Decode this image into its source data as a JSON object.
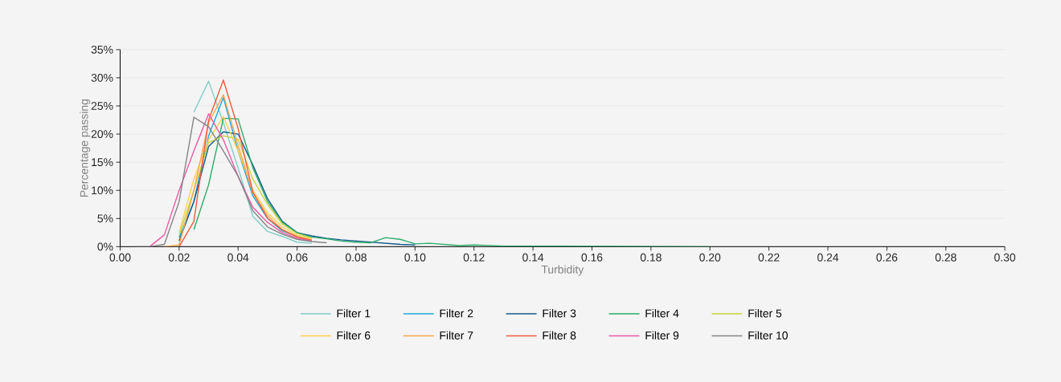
{
  "chart_data": {
    "type": "line",
    "xlabel": "Turbidity",
    "ylabel": "Percentage passing",
    "x": [
      0.005,
      0.01,
      0.015,
      0.02,
      0.025,
      0.03,
      0.035,
      0.04,
      0.045,
      0.05,
      0.055,
      0.06,
      0.065,
      0.07,
      0.075,
      0.08,
      0.085,
      0.09,
      0.095,
      0.1,
      0.105,
      0.11,
      0.115,
      0.12,
      0.125,
      0.13,
      0.15,
      0.2
    ],
    "series": [
      {
        "name": "Filter 1",
        "color": "#7fcdc4",
        "values": [
          null,
          null,
          null,
          null,
          23.9,
          29.4,
          22,
          14,
          5.4,
          2.7,
          1.8,
          0.8,
          0.6,
          null,
          null,
          null,
          null,
          null,
          null,
          null,
          null,
          null,
          null,
          null,
          null,
          null,
          null,
          null
        ]
      },
      {
        "name": "Filter 2",
        "color": "#1ea8dc",
        "values": [
          null,
          null,
          null,
          1.6,
          8,
          19.7,
          26.5,
          17,
          9,
          5,
          2.8,
          1.8,
          1.2,
          null,
          null,
          null,
          null,
          null,
          null,
          null,
          null,
          null,
          null,
          null,
          null,
          null,
          null,
          null
        ]
      },
      {
        "name": "Filter 3",
        "color": "#145a8c",
        "values": [
          null,
          null,
          null,
          1,
          8,
          17.8,
          20.4,
          20,
          14.5,
          8.5,
          4.5,
          2.5,
          1.9,
          1.5,
          1.2,
          1,
          0.8,
          0.6,
          0.4,
          0.3,
          null,
          null,
          null,
          null,
          null,
          null,
          null,
          null
        ]
      },
      {
        "name": "Filter 4",
        "color": "#2aab6a",
        "values": [
          null,
          null,
          null,
          null,
          3,
          11,
          22.8,
          22.7,
          14,
          8,
          4.3,
          2.5,
          1.7,
          1.4,
          1,
          0.8,
          0.7,
          1.6,
          1.3,
          0.5,
          0.6,
          0.4,
          0.2,
          0.3,
          0.2,
          0.1,
          0.1,
          0
        ]
      },
      {
        "name": "Filter 5",
        "color": "#c6d43a",
        "values": [
          null,
          null,
          null,
          2,
          10,
          18.5,
          19.7,
          19.1,
          12,
          7.5,
          4,
          2.3,
          1.5,
          null,
          null,
          null,
          null,
          null,
          null,
          null,
          null,
          null,
          null,
          null,
          null,
          null,
          null,
          null
        ]
      },
      {
        "name": "Filter 6",
        "color": "#fdd052",
        "values": [
          null,
          null,
          null,
          2.5,
          12,
          19,
          23.1,
          17,
          10,
          6,
          3.5,
          2,
          1.3,
          null,
          null,
          null,
          null,
          null,
          null,
          null,
          null,
          null,
          null,
          null,
          null,
          null,
          null,
          null
        ]
      },
      {
        "name": "Filter 7",
        "color": "#f9a54b",
        "values": [
          null,
          null,
          0,
          0.3,
          10,
          22,
          27,
          18,
          9.5,
          5.5,
          3,
          1.8,
          1.2,
          null,
          null,
          null,
          null,
          null,
          null,
          null,
          null,
          null,
          null,
          null,
          null,
          null,
          null,
          null
        ]
      },
      {
        "name": "Filter 8",
        "color": "#ef5a3c",
        "values": [
          null,
          null,
          null,
          0,
          4.5,
          22.5,
          29.6,
          21,
          9.7,
          5,
          3,
          1.7,
          1.1,
          null,
          null,
          null,
          null,
          null,
          null,
          null,
          null,
          null,
          null,
          null,
          null,
          null,
          null,
          null
        ]
      },
      {
        "name": "Filter 9",
        "color": "#ec5aa4",
        "values": [
          null,
          0,
          2.1,
          10,
          17,
          23.6,
          19,
          12.5,
          7,
          4.3,
          2.5,
          1.5,
          1,
          null,
          null,
          null,
          null,
          null,
          null,
          null,
          null,
          null,
          null,
          null,
          null,
          null,
          null,
          null
        ]
      },
      {
        "name": "Filter 10",
        "color": "#848488",
        "values": [
          0,
          0,
          0.4,
          8,
          23,
          21.3,
          17,
          12.5,
          6.4,
          3.5,
          2.2,
          1.3,
          0.9,
          0.7,
          null,
          null,
          null,
          null,
          null,
          null,
          null,
          null,
          null,
          null,
          null,
          null,
          null,
          null
        ]
      }
    ],
    "xlim": [
      0,
      0.3
    ],
    "ylim": [
      0,
      35
    ],
    "xticks": [
      {
        "value": 0,
        "label": "0.00"
      },
      {
        "value": 0.02,
        "label": "0.02"
      },
      {
        "value": 0.04,
        "label": "0.04"
      },
      {
        "value": 0.06,
        "label": "0.06"
      },
      {
        "value": 0.08,
        "label": "0.08"
      },
      {
        "value": 0.1,
        "label": "0.10"
      },
      {
        "value": 0.12,
        "label": "0.12"
      },
      {
        "value": 0.14,
        "label": "0.14"
      },
      {
        "value": 0.16,
        "label": "0.16"
      },
      {
        "value": 0.18,
        "label": "0.18"
      },
      {
        "value": 0.2,
        "label": "0.20"
      },
      {
        "value": 0.22,
        "label": "0.22"
      },
      {
        "value": 0.24,
        "label": "0.24"
      },
      {
        "value": 0.26,
        "label": "0.26"
      },
      {
        "value": 0.28,
        "label": "0.28"
      },
      {
        "value": 0.3,
        "label": "0.30"
      }
    ],
    "yticks": [
      {
        "value": 0,
        "label": "0%"
      },
      {
        "value": 5,
        "label": "5%"
      },
      {
        "value": 10,
        "label": "10%"
      },
      {
        "value": 15,
        "label": "15%"
      },
      {
        "value": 20,
        "label": "20%"
      },
      {
        "value": 25,
        "label": "25%"
      },
      {
        "value": 30,
        "label": "30%"
      },
      {
        "value": 35,
        "label": "35%"
      }
    ],
    "grid": "y",
    "legend": "bottom"
  }
}
